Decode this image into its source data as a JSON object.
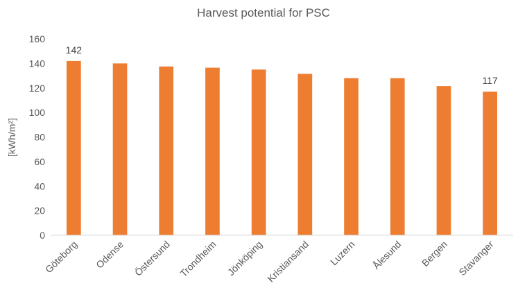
{
  "chart_data": {
    "type": "bar",
    "title": "Harvest potential for PSC",
    "ylabel": "[kWh/m²]",
    "xlabel": "",
    "categories": [
      "Göteborg",
      "Odense",
      "Östersund",
      "Trondheim",
      "Jönköping",
      "Kristiansand",
      "Luzern",
      "Ålesund",
      "Bergen",
      "Stavanger"
    ],
    "values": [
      142,
      140,
      137.5,
      136.5,
      135,
      131.5,
      128,
      128,
      121.5,
      117
    ],
    "data_labels": [
      {
        "index": 0,
        "text": "142"
      },
      {
        "index": 9,
        "text": "117"
      }
    ],
    "ylim": [
      0,
      160
    ],
    "yticks": [
      0,
      20,
      40,
      60,
      80,
      100,
      120,
      140,
      160
    ],
    "grid": false,
    "legend": "none",
    "bar_color": "#ED7D31",
    "axis_color": "#D9D9D9",
    "text_color": "#595959"
  }
}
